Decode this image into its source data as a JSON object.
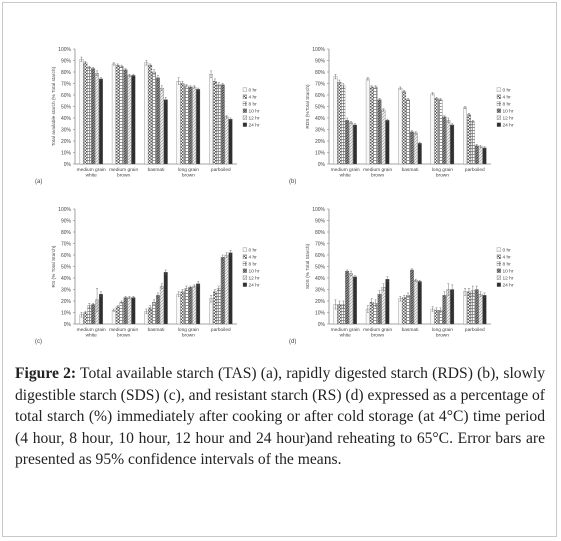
{
  "caption": {
    "label": "Figure 2:",
    "text": " Total available starch (TAS) (a), rapidly digested starch (RDS) (b), slowly digestible starch (SDS) (c), and resistant starch (RS) (d) expressed as a percentage of total starch (%) immediately after cooking or after cold storage (at 4°C) time period (4 hour, 8 hour, 10 hour, 12 hour and 24 hour)and reheating to 65°C. Error bars are presented as 95% confidence intervals of the means."
  },
  "colors": {
    "series": [
      "#f4f4f4",
      "#b0b0b0",
      "#d8d8d8",
      "#8a8a8a",
      "#dcdcdc",
      "#303030"
    ]
  },
  "chart_data": [
    {
      "type": "bar",
      "panel_label": "(a)",
      "ylabel": "Total available starch (% Total starch)",
      "yticks": [
        "0%",
        "10%",
        "20%",
        "30%",
        "40%",
        "50%",
        "60%",
        "70%",
        "80%",
        "90%",
        "100%"
      ],
      "ylim": [
        0,
        100
      ],
      "categories": [
        [
          "medium grain",
          "white"
        ],
        [
          "medium grain",
          "brown"
        ],
        [
          "basmati"
        ],
        [
          "long grain",
          "brown"
        ],
        [
          "parboiled"
        ]
      ],
      "legend": [
        "0 hr",
        "4 hr",
        "8 hr",
        "10 hr",
        "12 hr",
        "24 hr"
      ],
      "series": [
        {
          "name": "0 hr",
          "values": [
            91,
            87,
            88,
            72,
            78
          ]
        },
        {
          "name": "4 hr",
          "values": [
            88,
            86,
            86,
            70,
            72
          ]
        },
        {
          "name": "8 hr",
          "values": [
            84,
            85,
            80,
            68,
            69
          ]
        },
        {
          "name": "10 hr",
          "values": [
            83,
            82,
            75,
            67,
            69
          ]
        },
        {
          "name": "12 hr",
          "values": [
            79,
            77,
            66,
            67,
            41
          ]
        },
        {
          "name": "24 hr",
          "values": [
            74,
            77,
            56,
            65,
            39
          ]
        }
      ],
      "errors": [
        [
          2,
          1,
          2,
          3,
          3
        ],
        [
          1,
          1,
          1,
          2,
          2
        ],
        [
          1,
          1,
          2,
          1,
          2
        ],
        [
          1,
          1,
          2,
          1,
          1
        ],
        [
          2,
          1,
          2,
          1,
          1
        ],
        [
          1,
          1,
          2,
          1,
          1
        ]
      ]
    },
    {
      "type": "bar",
      "panel_label": "(b)",
      "ylabel": "RDS (%Total Starch)",
      "yticks": [
        "0%",
        "10%",
        "20%",
        "30%",
        "40%",
        "50%",
        "60%",
        "70%",
        "80%",
        "90%",
        "100%"
      ],
      "ylim": [
        0,
        100
      ],
      "categories": [
        [
          "medium grain",
          "white"
        ],
        [
          "medium grain",
          "brown"
        ],
        [
          "basmati"
        ],
        [
          "long grain",
          "brown"
        ],
        [
          "parboiled"
        ]
      ],
      "legend": [
        "0 hr",
        "4 hr",
        "8 hr",
        "10 hr",
        "12 hr",
        "24 hr"
      ],
      "series": [
        {
          "name": "0 hr",
          "values": [
            76,
            74,
            66,
            61,
            49
          ]
        },
        {
          "name": "4 hr",
          "values": [
            71,
            67,
            63,
            57,
            43
          ]
        },
        {
          "name": "8 hr",
          "values": [
            68,
            67,
            56,
            56,
            37
          ]
        },
        {
          "name": "10 hr",
          "values": [
            38,
            56,
            28,
            41,
            16
          ]
        },
        {
          "name": "12 hr",
          "values": [
            36,
            47,
            27,
            38,
            15
          ]
        },
        {
          "name": "24 hr",
          "values": [
            34,
            38,
            18,
            34,
            14
          ]
        }
      ],
      "errors": [
        [
          2,
          1,
          1,
          1,
          1
        ],
        [
          2,
          1,
          1,
          1,
          1
        ],
        [
          2,
          1,
          1,
          1,
          1
        ],
        [
          2,
          1,
          1,
          1,
          1
        ],
        [
          1,
          1,
          1,
          2,
          1
        ],
        [
          1,
          1,
          1,
          1,
          1
        ]
      ]
    },
    {
      "type": "bar",
      "panel_label": "(c)",
      "ylabel": "RS (% Total Starch)",
      "yticks": [
        "0%",
        "10%",
        "20%",
        "30%",
        "40%",
        "50%",
        "60%",
        "70%",
        "80%",
        "90%",
        "100%"
      ],
      "ylim": [
        0,
        100
      ],
      "categories": [
        [
          "medium grain",
          "white"
        ],
        [
          "medium grain",
          "brown"
        ],
        [
          "basmati"
        ],
        [
          "long grain",
          "brown"
        ],
        [
          "parboiled"
        ]
      ],
      "legend": [
        "0 hr",
        "4 hr",
        "8 hr",
        "10 hr",
        "12 hr",
        "24 hr"
      ],
      "series": [
        {
          "name": "0 hr",
          "values": [
            8,
            12,
            11,
            26,
            22
          ]
        },
        {
          "name": "4 hr",
          "values": [
            10,
            15,
            14,
            28,
            28
          ]
        },
        {
          "name": "8 hr",
          "values": [
            16,
            19,
            19,
            31,
            31
          ]
        },
        {
          "name": "10 hr",
          "values": [
            17,
            23,
            25,
            32,
            58
          ]
        },
        {
          "name": "12 hr",
          "values": [
            21,
            23,
            33,
            33,
            60
          ]
        },
        {
          "name": "24 hr",
          "values": [
            26,
            23,
            45,
            35,
            62
          ]
        }
      ],
      "errors": [
        [
          2,
          1,
          2,
          2,
          3
        ],
        [
          1,
          1,
          2,
          2,
          2
        ],
        [
          2,
          1,
          2,
          2,
          2
        ],
        [
          1,
          1,
          2,
          1,
          2
        ],
        [
          10,
          1,
          2,
          1,
          2
        ],
        [
          2,
          1,
          2,
          2,
          2
        ]
      ]
    },
    {
      "type": "bar",
      "panel_label": "(d)",
      "ylabel": "SDS (% Total Starch)",
      "yticks": [
        "0%",
        "10%",
        "20%",
        "30%",
        "40%",
        "50%",
        "60%",
        "70%",
        "80%",
        "90%",
        "100%"
      ],
      "ylim": [
        0,
        100
      ],
      "categories": [
        [
          "medium grain",
          "white"
        ],
        [
          "medium grain",
          "brown"
        ],
        [
          "basmati"
        ],
        [
          "long grain",
          "brown"
        ],
        [
          "parboiled"
        ]
      ],
      "legend": [
        "0 hr",
        "4 hr",
        "8 hr",
        "10 hr",
        "12 hr",
        "24 hr"
      ],
      "series": [
        {
          "name": "0 hr",
          "values": [
            17,
            13,
            22,
            13,
            28
          ]
        },
        {
          "name": "4 hr",
          "values": [
            17,
            19,
            23,
            12,
            28
          ]
        },
        {
          "name": "8 hr",
          "values": [
            17,
            18,
            25,
            12,
            29
          ]
        },
        {
          "name": "10 hr",
          "values": [
            46,
            26,
            47,
            25,
            30
          ]
        },
        {
          "name": "12 hr",
          "values": [
            44,
            32,
            38,
            30,
            26
          ]
        },
        {
          "name": "24 hr",
          "values": [
            41,
            39,
            37,
            30,
            25
          ]
        }
      ],
      "errors": [
        [
          4,
          3,
          2,
          2,
          3
        ],
        [
          3,
          3,
          2,
          2,
          3
        ],
        [
          3,
          3,
          2,
          2,
          4
        ],
        [
          1,
          3,
          1,
          3,
          3
        ],
        [
          2,
          3,
          1,
          5,
          2
        ],
        [
          1,
          2,
          1,
          4,
          2
        ]
      ]
    }
  ]
}
